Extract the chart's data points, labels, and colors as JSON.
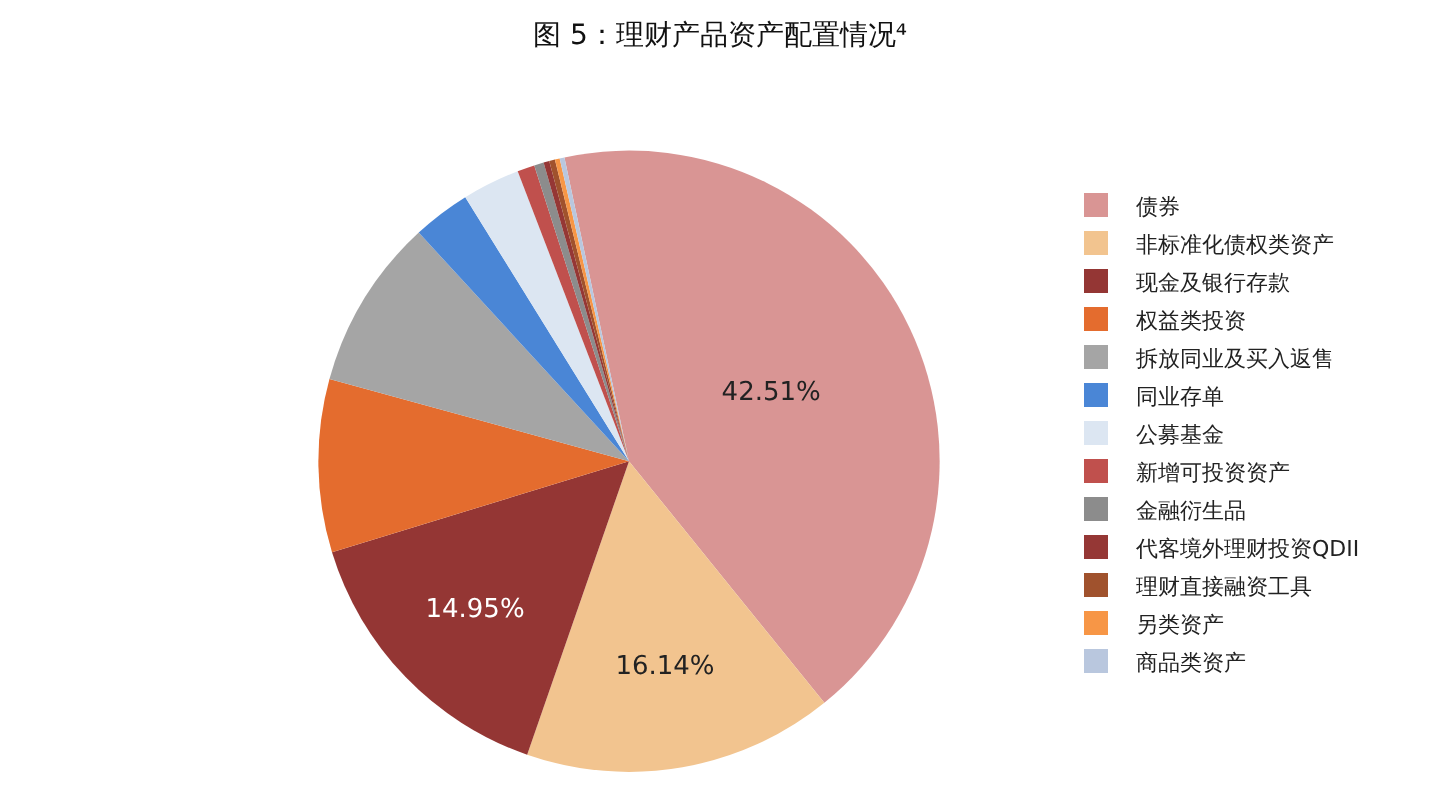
{
  "chart_data": {
    "type": "pie",
    "title": "图 5：理财产品资产配置情况⁴",
    "categories": [
      "债券",
      "非标准化债权类资产",
      "现金及银行存款",
      "权益类投资",
      "拆放同业及买入返售",
      "同业存单",
      "公募基金",
      "新增可投资资产",
      "金融衍生品",
      "代客境外理财投资QDII",
      "理财直接融资工具",
      "另类资产",
      "商品类资产"
    ],
    "values": [
      42.51,
      16.14,
      14.95,
      9.0,
      8.9,
      3.0,
      3.0,
      0.9,
      0.5,
      0.3,
      0.3,
      0.25,
      0.25
    ],
    "colors": [
      "#d99594",
      "#f2c48f",
      "#943634",
      "#e46c2e",
      "#a5a5a5",
      "#4a86d6",
      "#dce6f2",
      "#c0504d",
      "#8c8c8c",
      "#953735",
      "#a0522d",
      "#f79646",
      "#b9c7de"
    ],
    "value_labels": [
      "42.51%",
      "16.14%",
      "14.95%",
      null,
      null,
      null,
      null,
      null,
      null,
      null,
      null,
      null,
      null
    ],
    "legend": "right"
  }
}
